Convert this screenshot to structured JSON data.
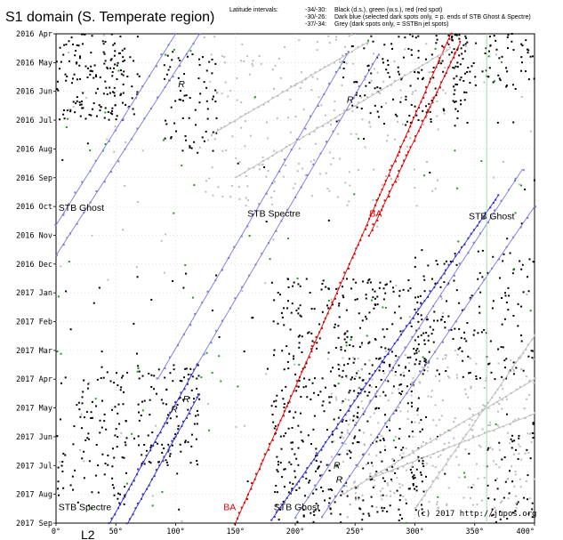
{
  "chart_data": {
    "type": "scatter",
    "title": "S1 domain (S. Temperate region)",
    "legend_heading": "Latitude intervals:",
    "legend": [
      {
        "range": "-34/-30:",
        "text": "Black (d.s.), green (w.s.), red (red spot)"
      },
      {
        "range": "-30/-26:",
        "text": "Dark blue (selected dark spots only, = p. ends of STB Ghost & Spectre)"
      },
      {
        "range": "-37/-34:",
        "text": "Grey (dark spots only, = SSTBn jet spots)"
      }
    ],
    "colors": {
      "black": "#000000",
      "green": "#1aa01a",
      "red": "#e00000",
      "blue": "#3030d0",
      "grey": "#bdbdbd",
      "line": "#7878e0",
      "marker": "#d020d0",
      "ref": "#9be09b"
    },
    "xlim": [
      0,
      400
    ],
    "x_ticks": [
      "0°",
      "50°",
      "100°",
      "150°",
      "200°",
      "250°",
      "300°",
      "350°",
      "400°"
    ],
    "y_ticks": [
      "2016 Apr",
      "2016 May",
      "2016 Jun",
      "2016 Jul",
      "2016 Aug",
      "2016 Sep",
      "2016 Oct",
      "2016 Nov",
      "2016 Dec",
      "2017 Jan",
      "2017 Feb",
      "2017 Mar",
      "2017 Apr",
      "2017 May",
      "2017 Jun",
      "2017 Jul",
      "2017 Aug",
      "2017 Sep"
    ],
    "reference_line_x": 360,
    "annotations": [
      {
        "text": "STB Ghost",
        "x": 2,
        "y": 6.15,
        "color": "black"
      },
      {
        "text": "STB Spectre",
        "x": 160,
        "y": 6.35,
        "color": "black"
      },
      {
        "text": "BA",
        "x": 262,
        "y": 6.35,
        "color": "red"
      },
      {
        "text": "STB Ghost",
        "x": 345,
        "y": 6.45,
        "color": "black"
      },
      {
        "text": "STB Spectre",
        "x": 2,
        "y": 16.55,
        "color": "black"
      },
      {
        "text": "BA",
        "x": 140,
        "y": 16.55,
        "color": "red"
      },
      {
        "text": "STB Ghost",
        "x": 182,
        "y": 16.55,
        "color": "black"
      },
      {
        "text": "R",
        "x": 102,
        "y": 1.85,
        "color": "magenta"
      },
      {
        "text": "R",
        "x": 243,
        "y": 2.4,
        "color": "magenta"
      },
      {
        "text": "R",
        "x": 106,
        "y": 12.8,
        "color": "magenta"
      },
      {
        "text": "R",
        "x": 96,
        "y": 13.15,
        "color": "magenta"
      },
      {
        "text": "R",
        "x": 232,
        "y": 15.1,
        "color": "magenta"
      },
      {
        "text": "R",
        "x": 234,
        "y": 15.6,
        "color": "magenta"
      }
    ],
    "drift_lines": [
      {
        "name": "STB Ghost",
        "x1": 0,
        "y1": 6.65,
        "x2": 100,
        "y2": 0,
        "color": "line"
      },
      {
        "name": "STB Ghost",
        "x1": 0,
        "y1": 7.7,
        "x2": 120,
        "y2": 0,
        "color": "line"
      },
      {
        "name": "STB Spectre",
        "x1": 85,
        "y1": 12.0,
        "x2": 245,
        "y2": 0.6,
        "color": "line"
      },
      {
        "name": "STB Spectre",
        "x1": 118,
        "y1": 11.5,
        "x2": 270,
        "y2": 0.7,
        "color": "line"
      },
      {
        "name": "STB Spectre",
        "x1": 45,
        "y1": 17.0,
        "x2": 118,
        "y2": 11.5,
        "color": "blue"
      },
      {
        "name": "STB Spectre",
        "x1": 60,
        "y1": 17.0,
        "x2": 120,
        "y2": 12.5,
        "color": "blue"
      },
      {
        "name": "BA",
        "x1": 150,
        "y1": 17.0,
        "x2": 330,
        "y2": 0.0,
        "color": "red"
      },
      {
        "name": "BA",
        "x1": 262,
        "y1": 7.0,
        "x2": 338,
        "y2": 0.3,
        "color": "red"
      },
      {
        "name": "STB Ghost",
        "x1": 200,
        "y1": 16.8,
        "x2": 390,
        "y2": 4.7,
        "color": "line"
      },
      {
        "name": "STB Ghost",
        "x1": 222,
        "y1": 16.8,
        "x2": 400,
        "y2": 6.0,
        "color": "line"
      },
      {
        "name": "STB Ghost",
        "x1": 180,
        "y1": 16.9,
        "x2": 370,
        "y2": 5.6,
        "color": "blue"
      },
      {
        "name": "SSTBn jet",
        "x1": 300,
        "y1": 16.5,
        "x2": 400,
        "y2": 10.5,
        "color": "grey"
      },
      {
        "name": "SSTBn jet",
        "x1": 240,
        "y1": 16.0,
        "x2": 400,
        "y2": 12.0,
        "color": "grey"
      },
      {
        "name": "SSTBn jet",
        "x1": 130,
        "y1": 3.5,
        "x2": 260,
        "y2": 0.3,
        "color": "grey"
      },
      {
        "name": "SSTBn jet",
        "x1": 150,
        "y1": 5.0,
        "x2": 330,
        "y2": 0.5,
        "color": "grey"
      },
      {
        "name": "SSTBn jet",
        "x1": 260,
        "y1": 15.5,
        "x2": 400,
        "y2": 13.2,
        "color": "grey"
      }
    ],
    "point_clusters": [
      {
        "color": "black",
        "x": [
          0,
          70
        ],
        "y": [
          0,
          3.0
        ],
        "count": 160
      },
      {
        "color": "black",
        "x": [
          90,
          135
        ],
        "y": [
          0.6,
          4.2
        ],
        "count": 70
      },
      {
        "color": "black",
        "x": [
          240,
          345
        ],
        "y": [
          0,
          3.2
        ],
        "count": 140
      },
      {
        "color": "black",
        "x": [
          330,
          400
        ],
        "y": [
          0,
          2.0
        ],
        "count": 80
      },
      {
        "color": "black",
        "x": [
          180,
          310
        ],
        "y": [
          8.5,
          17.0
        ],
        "count": 520
      },
      {
        "color": "black",
        "x": [
          300,
          400
        ],
        "y": [
          7.5,
          12.0
        ],
        "count": 150
      },
      {
        "color": "black",
        "x": [
          65,
          120
        ],
        "y": [
          11.5,
          15.0
        ],
        "count": 100
      },
      {
        "color": "black",
        "x": [
          0,
          60
        ],
        "y": [
          11.5,
          16.5
        ],
        "count": 110
      },
      {
        "color": "black",
        "x": [
          360,
          400
        ],
        "y": [
          13.5,
          17.0
        ],
        "count": 50
      },
      {
        "color": "black",
        "x": [
          0,
          400
        ],
        "y": [
          3.0,
          17.0
        ],
        "count": 70
      },
      {
        "color": "grey",
        "x": [
          120,
          330
        ],
        "y": [
          0,
          6.0
        ],
        "count": 180
      },
      {
        "color": "grey",
        "x": [
          230,
          400
        ],
        "y": [
          11.0,
          16.5
        ],
        "count": 260
      },
      {
        "color": "grey",
        "x": [
          0,
          400
        ],
        "y": [
          0,
          17.0
        ],
        "count": 90
      },
      {
        "color": "green",
        "x": [
          0,
          400
        ],
        "y": [
          0,
          17.0
        ],
        "count": 80
      }
    ]
  },
  "credit": "(c) 2017 http://jupos.org",
  "label_L2": "L2"
}
